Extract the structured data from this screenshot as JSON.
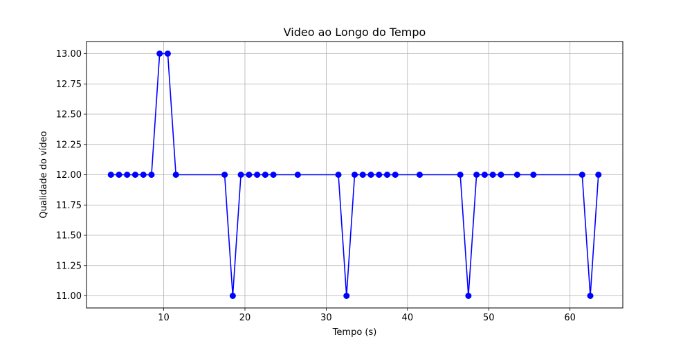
{
  "chart_data": {
    "type": "line",
    "title": "Video ao Longo do Tempo",
    "xlabel": "Tempo (s)",
    "ylabel": "Qualidade do vídeo",
    "xlim": [
      0.5,
      66.5
    ],
    "ylim": [
      10.9,
      13.1
    ],
    "xticks": [
      10,
      20,
      30,
      40,
      50,
      60
    ],
    "yticks": [
      11.0,
      11.25,
      11.5,
      11.75,
      12.0,
      12.25,
      12.5,
      12.75,
      13.0
    ],
    "grid": true,
    "line_color": "#0000ff",
    "marker": "circle",
    "series": [
      {
        "x": [
          3.5,
          4.5,
          5.5,
          6.5,
          7.5,
          8.5,
          9.5,
          10.5,
          11.5,
          17.5,
          18.5,
          19.5,
          20.5,
          21.5,
          22.5,
          23.5,
          26.5,
          31.5,
          32.5,
          33.5,
          34.5,
          35.5,
          36.5,
          37.5,
          38.5,
          41.5,
          46.5,
          47.5,
          48.5,
          49.5,
          50.5,
          51.5,
          53.5,
          55.5,
          61.5,
          62.5,
          63.5
        ],
        "y": [
          12,
          12,
          12,
          12,
          12,
          12,
          13,
          13,
          12,
          12,
          11,
          12,
          12,
          12,
          12,
          12,
          12,
          12,
          11,
          12,
          12,
          12,
          12,
          12,
          12,
          12,
          12,
          11,
          12,
          12,
          12,
          12,
          12,
          12,
          12,
          11,
          12
        ]
      }
    ]
  }
}
